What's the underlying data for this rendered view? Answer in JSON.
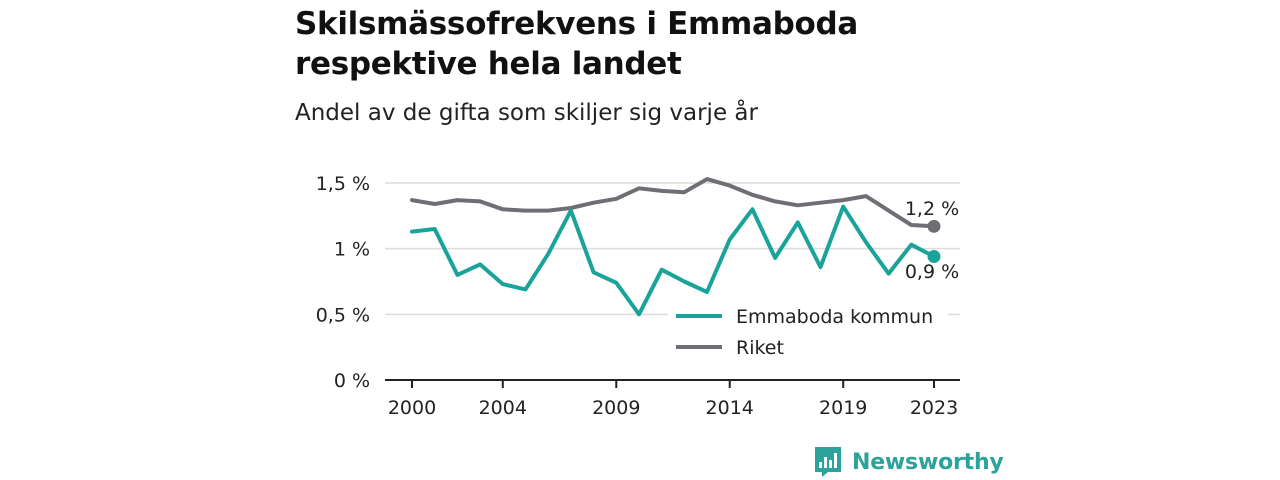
{
  "title": "Skilsmässofrekvens i Emmaboda respektive hela landet",
  "subtitle": "Andel av de gifta som skiljer sig varje år",
  "brand": {
    "name": "Newsworthy",
    "icon": "newsworthy-logo-icon",
    "color": "#2aa39a"
  },
  "chart_data": {
    "type": "line",
    "title": "Skilsmässofrekvens i Emmaboda respektive hela landet",
    "subtitle": "Andel av de gifta som skiljer sig varje år",
    "x": [
      2000,
      2001,
      2002,
      2003,
      2004,
      2005,
      2006,
      2007,
      2008,
      2009,
      2010,
      2011,
      2012,
      2013,
      2014,
      2015,
      2016,
      2017,
      2018,
      2019,
      2020,
      2021,
      2022,
      2023
    ],
    "xticks": [
      2000,
      2004,
      2009,
      2014,
      2019,
      2023
    ],
    "xtick_labels": [
      "2000",
      "2004",
      "2009",
      "2014",
      "2019",
      "2023"
    ],
    "ylim": [
      0,
      1.5
    ],
    "yticks": [
      0,
      0.5,
      1,
      1.5
    ],
    "ytick_labels": [
      "0 %",
      "0,5 %",
      "1 %",
      "1,5 %"
    ],
    "grid": true,
    "legend_position": "bottom-right",
    "series": [
      {
        "name": "Emmaboda kommun",
        "color": "#1aa39a",
        "values": [
          1.13,
          1.15,
          0.8,
          0.88,
          0.73,
          0.69,
          0.96,
          1.29,
          0.82,
          0.74,
          0.5,
          0.84,
          0.75,
          0.67,
          1.07,
          1.3,
          0.93,
          1.2,
          0.86,
          1.32,
          1.05,
          0.81,
          1.03,
          0.94
        ],
        "end_label": "0,9 %"
      },
      {
        "name": "Riket",
        "color": "#6f6e74",
        "values": [
          1.37,
          1.34,
          1.37,
          1.36,
          1.3,
          1.29,
          1.29,
          1.31,
          1.35,
          1.38,
          1.46,
          1.44,
          1.43,
          1.53,
          1.48,
          1.41,
          1.36,
          1.33,
          1.35,
          1.37,
          1.4,
          1.29,
          1.18,
          1.17
        ],
        "end_label": "1,2 %"
      }
    ]
  }
}
